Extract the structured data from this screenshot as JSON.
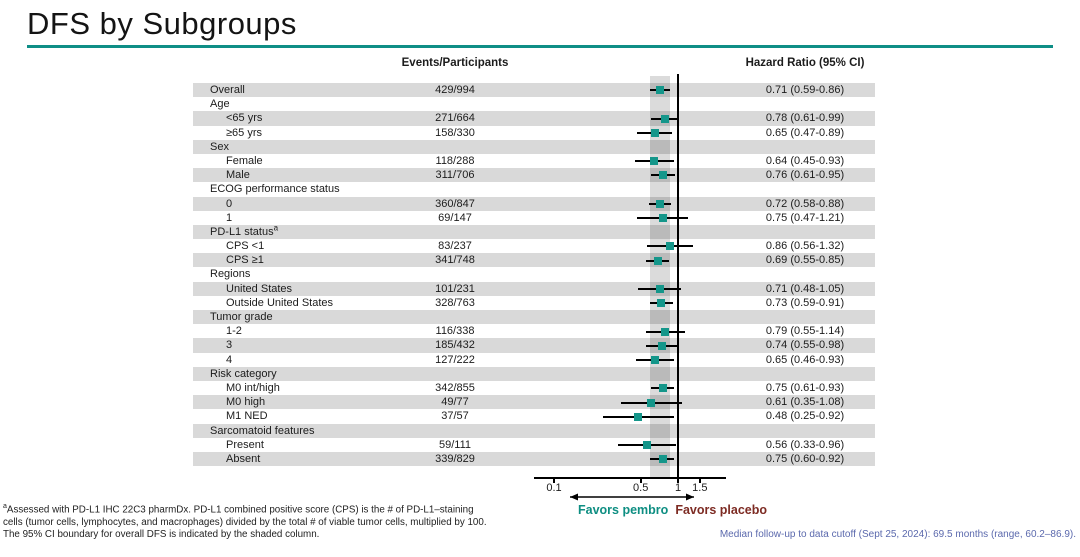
{
  "slide": {
    "title": "DFS by Subgroups",
    "accent_color": "#0E8E86"
  },
  "table": {
    "col_events_header": "Events/Participants",
    "col_hr_header": "Hazard Ratio (95% CI)"
  },
  "chart_data": {
    "type": "scatter",
    "subtype": "forest-plot",
    "title": "DFS by Subgroups",
    "marker_color": "#14968a",
    "x_axis": {
      "scale": "log",
      "ticks": [
        0.1,
        0.5,
        1,
        1.5
      ],
      "tick_labels": [
        "0.1",
        "0.5",
        "1",
        "1.5"
      ],
      "reference_line": 1
    },
    "shaded_band": {
      "lo": 0.59,
      "hi": 0.86,
      "note": "95% CI boundary for overall DFS"
    },
    "favors_left": "Favors pembro",
    "favors_right": "Favors placebo",
    "favors_left_color": "#0e8e82",
    "favors_right_color": "#7d2b23",
    "rows": [
      {
        "label": "Overall",
        "indent": 0,
        "events": "429/994",
        "hr": 0.71,
        "lo": 0.59,
        "hi": 0.86,
        "hr_text": "0.71 (0.59-0.86)"
      },
      {
        "label": "Age",
        "indent": 0,
        "header": true
      },
      {
        "label": "<65 yrs",
        "indent": 1,
        "events": "271/664",
        "hr": 0.78,
        "lo": 0.61,
        "hi": 0.99,
        "hr_text": "0.78 (0.61-0.99)"
      },
      {
        "label": "≥65 yrs",
        "indent": 1,
        "events": "158/330",
        "hr": 0.65,
        "lo": 0.47,
        "hi": 0.89,
        "hr_text": "0.65 (0.47-0.89)"
      },
      {
        "label": "Sex",
        "indent": 0,
        "header": true
      },
      {
        "label": "Female",
        "indent": 1,
        "events": "118/288",
        "hr": 0.64,
        "lo": 0.45,
        "hi": 0.93,
        "hr_text": "0.64 (0.45-0.93)"
      },
      {
        "label": "Male",
        "indent": 1,
        "events": "311/706",
        "hr": 0.76,
        "lo": 0.61,
        "hi": 0.95,
        "hr_text": "0.76 (0.61-0.95)"
      },
      {
        "label": "ECOG performance status",
        "indent": 0,
        "header": true
      },
      {
        "label": "0",
        "indent": 1,
        "events": "360/847",
        "hr": 0.72,
        "lo": 0.58,
        "hi": 0.88,
        "hr_text": "0.72 (0.58-0.88)"
      },
      {
        "label": "1",
        "indent": 1,
        "events": "69/147",
        "hr": 0.75,
        "lo": 0.47,
        "hi": 1.21,
        "hr_text": "0.75 (0.47-1.21)"
      },
      {
        "label": "PD-L1 status",
        "sup": "a",
        "indent": 0,
        "header": true
      },
      {
        "label": "CPS <1",
        "indent": 1,
        "events": "83/237",
        "hr": 0.86,
        "lo": 0.56,
        "hi": 1.32,
        "hr_text": "0.86 (0.56-1.32)"
      },
      {
        "label": "CPS ≥1",
        "indent": 1,
        "events": "341/748",
        "hr": 0.69,
        "lo": 0.55,
        "hi": 0.85,
        "hr_text": "0.69 (0.55-0.85)"
      },
      {
        "label": "Regions",
        "indent": 0,
        "header": true
      },
      {
        "label": "United States",
        "indent": 1,
        "events": "101/231",
        "hr": 0.71,
        "lo": 0.48,
        "hi": 1.05,
        "hr_text": "0.71 (0.48-1.05)"
      },
      {
        "label": "Outside United States",
        "indent": 1,
        "events": "328/763",
        "hr": 0.73,
        "lo": 0.59,
        "hi": 0.91,
        "hr_text": "0.73 (0.59-0.91)"
      },
      {
        "label": "Tumor grade",
        "indent": 0,
        "header": true
      },
      {
        "label": "1-2",
        "indent": 1,
        "events": "116/338",
        "hr": 0.79,
        "lo": 0.55,
        "hi": 1.14,
        "hr_text": "0.79 (0.55-1.14)"
      },
      {
        "label": "3",
        "indent": 1,
        "events": "185/432",
        "hr": 0.74,
        "lo": 0.55,
        "hi": 0.98,
        "hr_text": "0.74 (0.55-0.98)"
      },
      {
        "label": "4",
        "indent": 1,
        "events": "127/222",
        "hr": 0.65,
        "lo": 0.46,
        "hi": 0.93,
        "hr_text": "0.65 (0.46-0.93)"
      },
      {
        "label": "Risk category",
        "indent": 0,
        "header": true
      },
      {
        "label": "M0 int/high",
        "indent": 1,
        "events": "342/855",
        "hr": 0.75,
        "lo": 0.61,
        "hi": 0.93,
        "hr_text": "0.75 (0.61-0.93)"
      },
      {
        "label": "M0 high",
        "indent": 1,
        "events": "49/77",
        "hr": 0.61,
        "lo": 0.35,
        "hi": 1.08,
        "hr_text": "0.61 (0.35-1.08)"
      },
      {
        "label": "M1 NED",
        "indent": 1,
        "events": "37/57",
        "hr": 0.48,
        "lo": 0.25,
        "hi": 0.92,
        "hr_text": "0.48 (0.25-0.92)"
      },
      {
        "label": "Sarcomatoid features",
        "indent": 0,
        "header": true
      },
      {
        "label": "Present",
        "indent": 1,
        "events": "59/111",
        "hr": 0.56,
        "lo": 0.33,
        "hi": 0.96,
        "hr_text": "0.56 (0.33-0.96)"
      },
      {
        "label": "Absent",
        "indent": 1,
        "events": "339/829",
        "hr": 0.75,
        "lo": 0.6,
        "hi": 0.92,
        "hr_text": "0.75 (0.60-0.92)"
      }
    ]
  },
  "footnotes": {
    "left_sup": "a",
    "left_line1": "Assessed with PD-L1 IHC 22C3 pharmDx. PD-L1 combined positive score (CPS) is the # of PD-L1–staining",
    "left_line2": "cells (tumor cells, lymphocytes, and macrophages) divided by the total # of viable tumor cells, multiplied by 100.",
    "left_line3": "The 95% CI boundary for overall DFS is indicated by the shaded column.",
    "right": "Median follow-up to data cutoff (Sept 25, 2024): 69.5 months (range, 60.2–86.9)."
  }
}
